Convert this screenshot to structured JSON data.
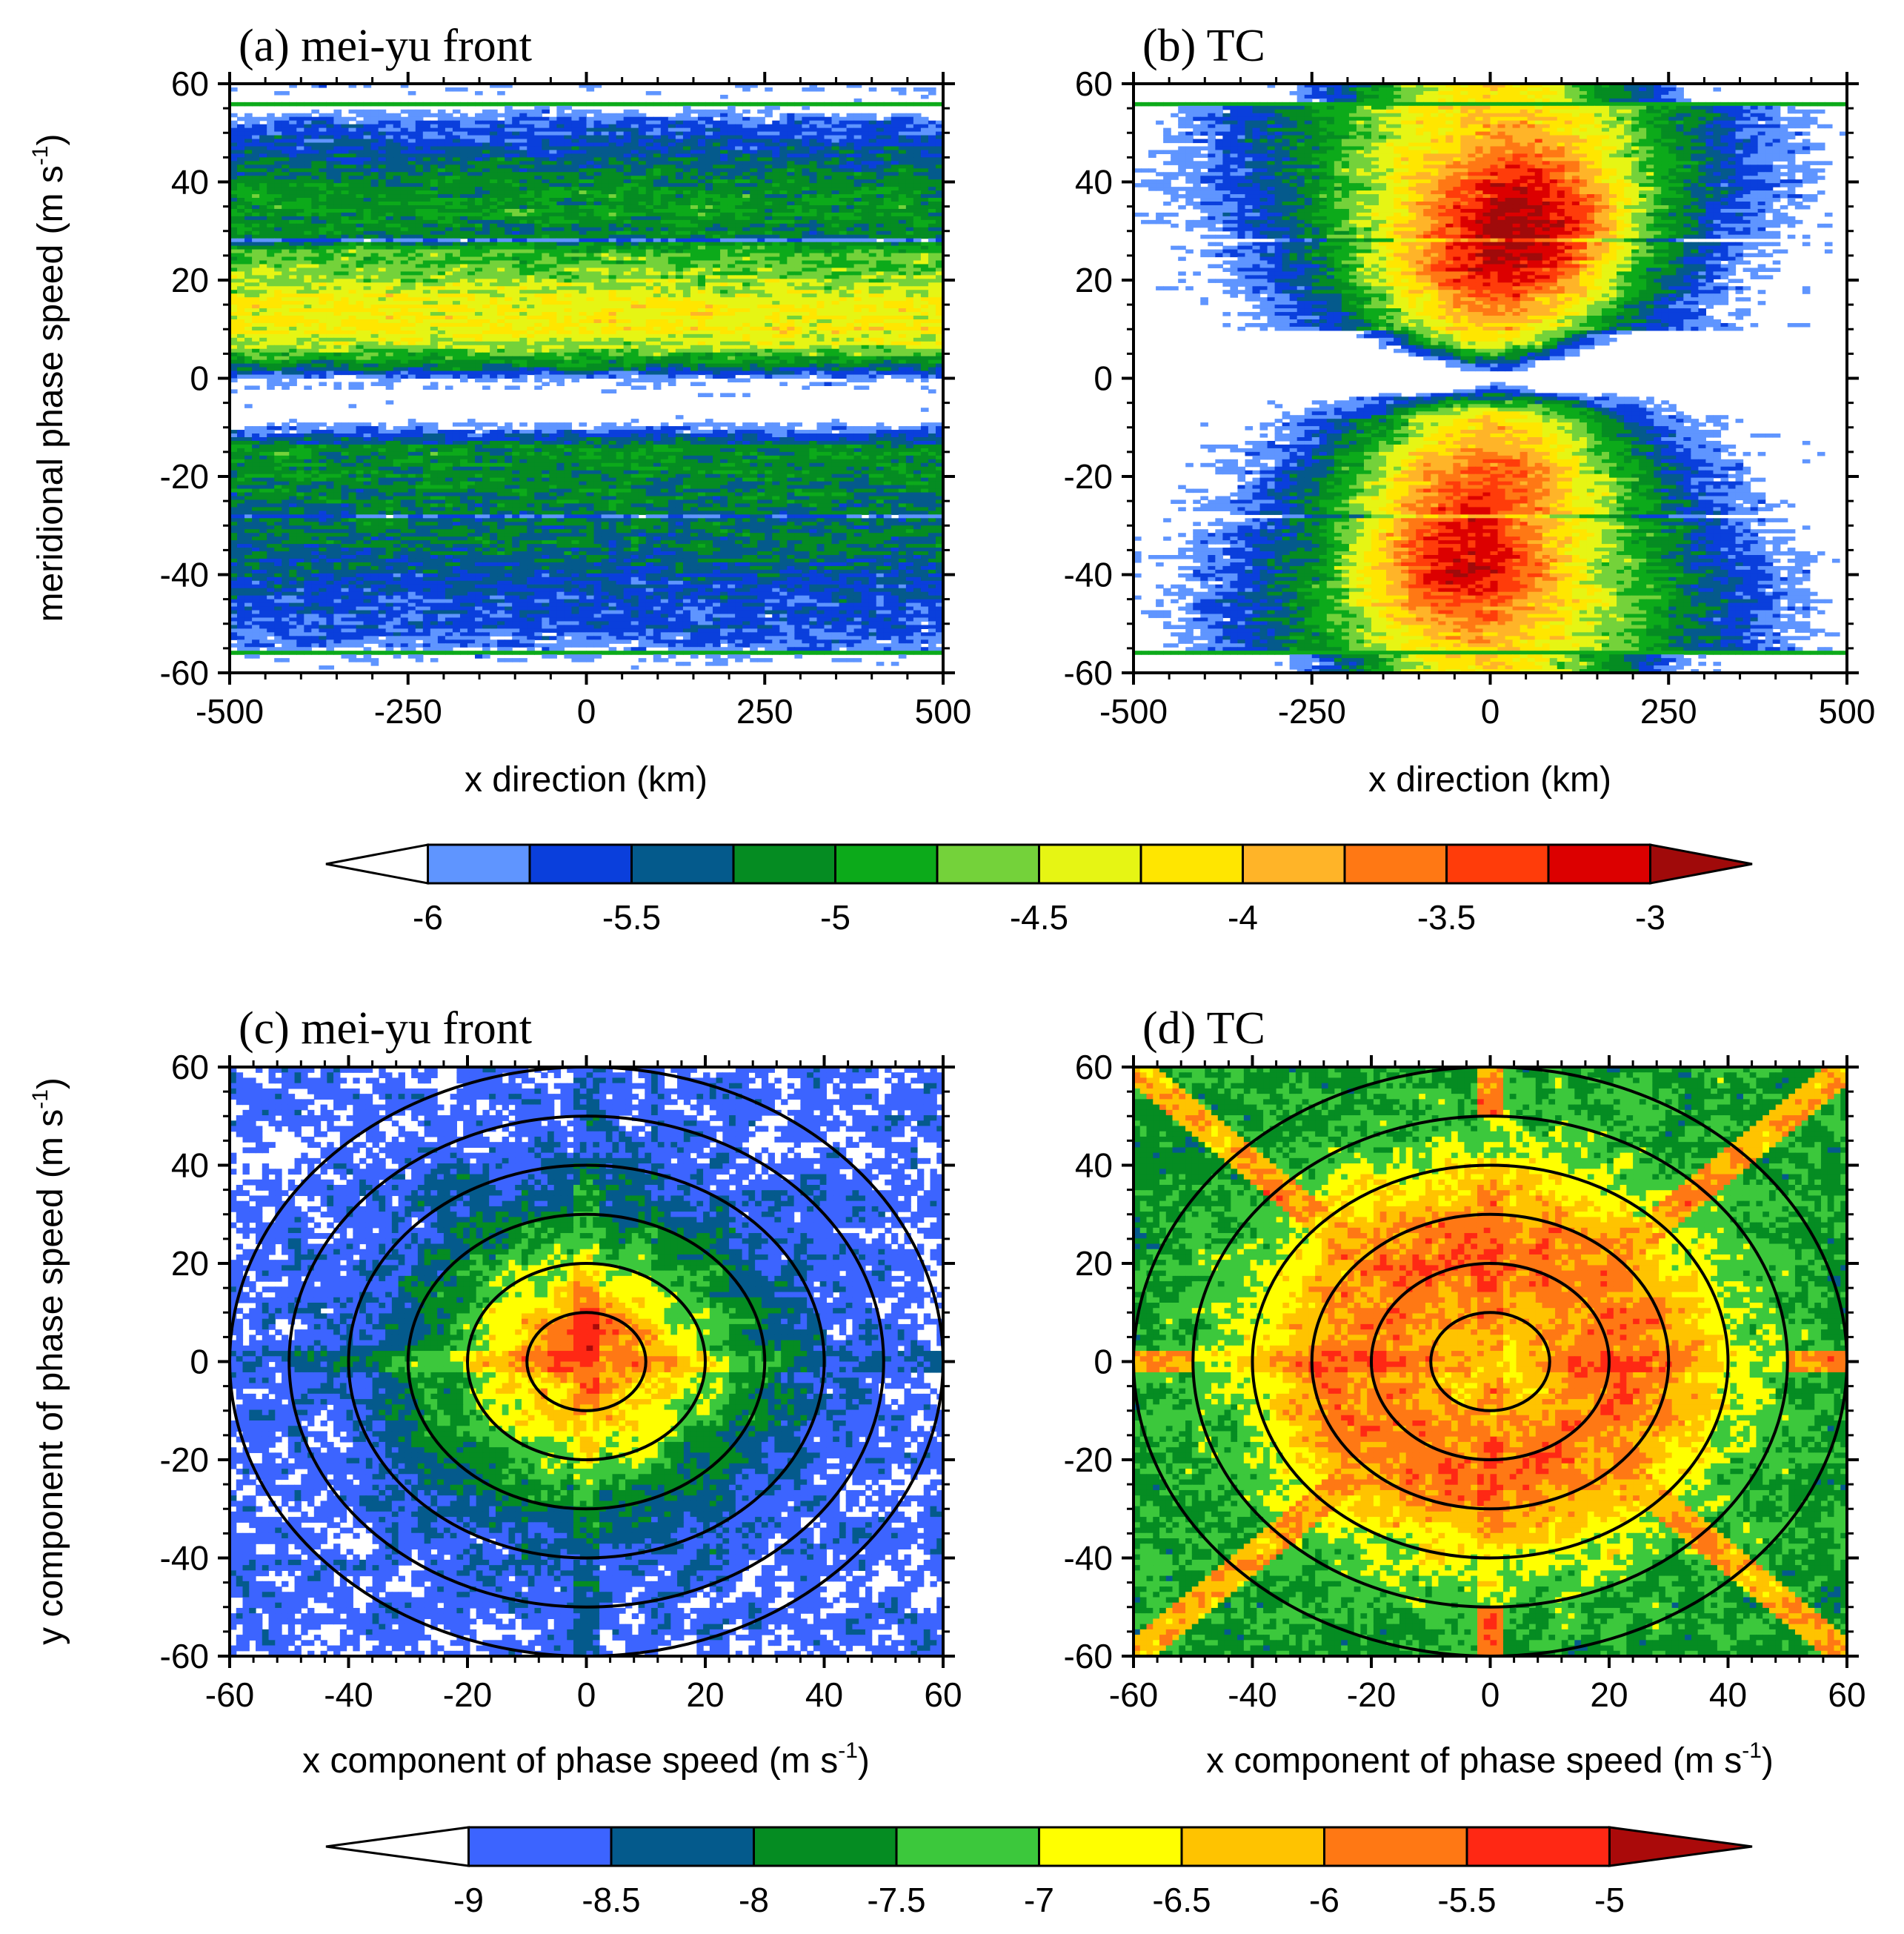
{
  "figure": {
    "colorbar_top": {
      "labels": [
        "-6",
        "-5.5",
        "-5",
        "-4.5",
        "-4",
        "-3.5",
        "-3"
      ],
      "colors": [
        "#ffffff",
        "#5f95ff",
        "#0a3fdc",
        "#045a8c",
        "#058c22",
        "#0caa1a",
        "#74d23a",
        "#e6f514",
        "#ffe600",
        "#ffb428",
        "#ff7814",
        "#ff3c0a",
        "#dc0000",
        "#a00a0a"
      ]
    },
    "colorbar_bottom": {
      "labels": [
        "-9",
        "-8.5",
        "-8",
        "-7.5",
        "-7",
        "-6.5",
        "-6",
        "-5.5",
        "-5"
      ],
      "colors": [
        "#ffffff",
        "#3c64ff",
        "#045a8c",
        "#058c22",
        "#3cc83c",
        "#ffff00",
        "#ffc300",
        "#ff7814",
        "#ff2814",
        "#aa0a0a"
      ]
    }
  },
  "chart_data": [
    {
      "type": "heatmap",
      "panel": "a",
      "title": "(a) mei-yu front",
      "xlabel": "x direction (km)",
      "ylabel": "meridional phase speed (m s",
      "ylabel_sup": "-1",
      "ylabel_close": ")",
      "xlim": [
        -500,
        500
      ],
      "ylim": [
        -60,
        60
      ],
      "xticks": [
        "-500",
        "-250",
        "0",
        "250",
        "500"
      ],
      "yticks": [
        "-60",
        "-40",
        "-20",
        "0",
        "20",
        "40",
        "60"
      ],
      "description": "log10 spectral density; max (yellow, ~-4.2) at 5-25 m/s, white gap from -12 to 0 m/s",
      "profile_c": [
        -60,
        -56,
        -52,
        -46,
        -40,
        -34,
        -28,
        -24,
        -18,
        -14,
        -12,
        -8,
        -4,
        0,
        2,
        6,
        10,
        16,
        22,
        26,
        28,
        34,
        40,
        46,
        52,
        56,
        60
      ],
      "profile_v": [
        -6.3,
        -6.0,
        -5.7,
        -5.6,
        -5.45,
        -5.25,
        -5.25,
        -5.2,
        -5.1,
        -5.1,
        -5.5,
        -6.3,
        -6.3,
        -6.0,
        -5.3,
        -4.6,
        -4.2,
        -4.3,
        -4.65,
        -4.8,
        -5.3,
        -5.0,
        -5.15,
        -5.45,
        -5.7,
        -6.3,
        -6.1
      ]
    },
    {
      "type": "heatmap",
      "panel": "b",
      "title": "(b) TC",
      "xlabel": "x direction (km)",
      "xlim": [
        -500,
        500
      ],
      "ylim": [
        -60,
        60
      ],
      "xticks": [
        "-500",
        "-250",
        "0",
        "250",
        "500"
      ],
      "yticks": [
        "-60",
        "-40",
        "-20",
        "0",
        "20",
        "40",
        "60"
      ],
      "description": "hourglass pattern; maxima (~-3.4) near x=50 km at +35 m/s and x=-50 km at -38 m/s"
    },
    {
      "type": "heatmap",
      "panel": "c",
      "title": "(c) mei-yu front",
      "xlabel": "x component of phase speed (m s",
      "xlabel_sup": "-1",
      "xlabel_close": ")",
      "ylabel": "y component of phase speed (m s",
      "ylabel_sup": "-1",
      "ylabel_close": ")",
      "xlim": [
        -60,
        60
      ],
      "ylim": [
        -60,
        60
      ],
      "xticks": [
        "-60",
        "-40",
        "-20",
        "0",
        "20",
        "40",
        "60"
      ],
      "yticks": [
        "-60",
        "-40",
        "-20",
        "0",
        "20",
        "40",
        "60"
      ],
      "circle_radii": [
        10,
        20,
        30,
        40,
        50,
        60
      ],
      "description": "phase speed spectrum; max (~-5.6) near (2, 7) m/s, decreasing outward"
    },
    {
      "type": "heatmap",
      "panel": "d",
      "title": "(d) TC",
      "xlabel": "x component of phase speed (m s",
      "xlabel_sup": "-1",
      "xlabel_close": ")",
      "xlim": [
        -60,
        60
      ],
      "ylim": [
        -60,
        60
      ],
      "xticks": [
        "-60",
        "-40",
        "-20",
        "0",
        "20",
        "40",
        "60"
      ],
      "yticks": [
        "-60",
        "-40",
        "-20",
        "0",
        "20",
        "40",
        "60"
      ],
      "circle_radii": [
        10,
        20,
        30,
        40,
        50,
        60
      ],
      "description": "ring maximum (~-5.8) at radius 15-35 m/s, diagonal and axis streaks"
    }
  ]
}
